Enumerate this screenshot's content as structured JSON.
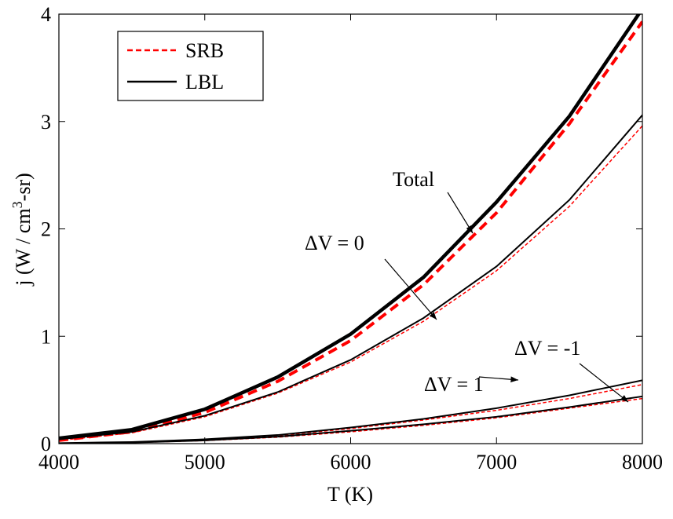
{
  "chart_data": {
    "type": "line",
    "xlabel": "T (K)",
    "ylabel": {
      "text": "j  (W / cm",
      "superscript": "3",
      "suffix": "-sr)"
    },
    "x": [
      4000,
      4500,
      5000,
      5500,
      6000,
      6500,
      7000,
      7500,
      8000
    ],
    "xlim": [
      4000,
      8000
    ],
    "xticks": [
      4000,
      5000,
      6000,
      7000,
      8000
    ],
    "ylim": [
      0,
      4
    ],
    "yticks": [
      0,
      1,
      2,
      3,
      4
    ],
    "grid": false,
    "legend": "upper left",
    "series": [
      {
        "name": "SRB",
        "color": "#ff0000",
        "dashed": true,
        "width": 4,
        "values": [
          0.03,
          0.11,
          0.29,
          0.58,
          0.96,
          1.48,
          2.15,
          2.98,
          3.93
        ]
      },
      {
        "name": "LBL",
        "color": "#000000",
        "dashed": false,
        "width": 4.5,
        "values": [
          0.05,
          0.13,
          0.32,
          0.62,
          1.02,
          1.55,
          2.25,
          3.05,
          4.05
        ]
      },
      {
        "name": "SRB",
        "color": "#ff0000",
        "dashed": true,
        "width": 1.5,
        "values": [
          0.03,
          0.1,
          0.25,
          0.47,
          0.76,
          1.14,
          1.61,
          2.21,
          2.96
        ]
      },
      {
        "name": "LBL",
        "color": "#000000",
        "dashed": false,
        "width": 2,
        "values": [
          0.04,
          0.11,
          0.26,
          0.48,
          0.78,
          1.17,
          1.65,
          2.27,
          3.06
        ]
      },
      {
        "name": "SRB",
        "color": "#ff0000",
        "dashed": true,
        "width": 1.5,
        "values": [
          0.004,
          0.013,
          0.035,
          0.075,
          0.14,
          0.22,
          0.31,
          0.42,
          0.55
        ]
      },
      {
        "name": "LBL",
        "color": "#000000",
        "dashed": false,
        "width": 2,
        "values": [
          0.005,
          0.015,
          0.04,
          0.08,
          0.15,
          0.23,
          0.33,
          0.45,
          0.59
        ]
      },
      {
        "name": "SRB",
        "color": "#ff0000",
        "dashed": true,
        "width": 1.5,
        "values": [
          0.003,
          0.01,
          0.028,
          0.06,
          0.11,
          0.17,
          0.24,
          0.33,
          0.42
        ]
      },
      {
        "name": "LBL",
        "color": "#000000",
        "dashed": false,
        "width": 2,
        "values": [
          0.003,
          0.01,
          0.03,
          0.065,
          0.12,
          0.18,
          0.25,
          0.34,
          0.44
        ]
      }
    ],
    "annotations": [
      "Total",
      "ΔV = 0",
      "ΔV = 1",
      "ΔV = -1"
    ]
  }
}
